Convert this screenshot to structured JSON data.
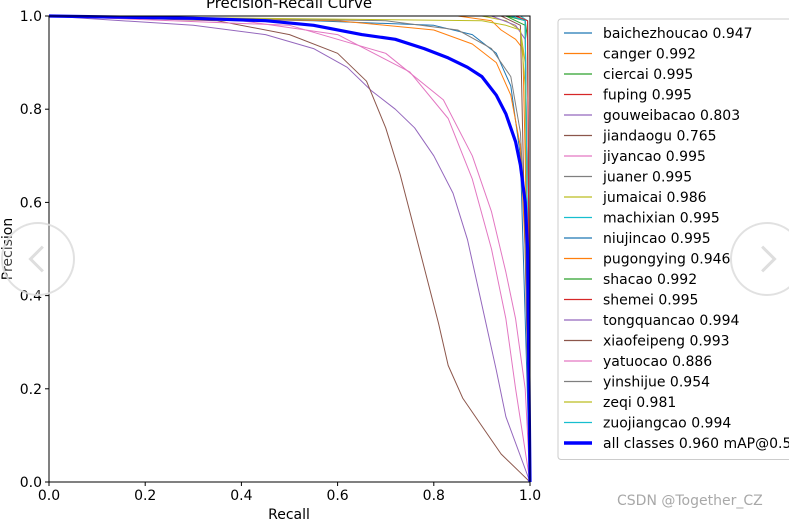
{
  "page": {
    "watermark": "CSDN @Together_CZ"
  },
  "chart_data": {
    "type": "line",
    "title": "Precision-Recall Curve",
    "xlabel": "Recall",
    "ylabel": "Precision",
    "xlim": [
      0,
      1
    ],
    "ylim": [
      0,
      1
    ],
    "xticks": [
      0.0,
      0.2,
      0.4,
      0.6,
      0.8,
      1.0
    ],
    "yticks": [
      0.0,
      0.2,
      0.4,
      0.6,
      0.8,
      1.0
    ],
    "tick_labels_x": [
      "0.0",
      "0.2",
      "0.4",
      "0.6",
      "0.8",
      "1.0"
    ],
    "tick_labels_y": [
      "0.0",
      "0.2",
      "0.4",
      "0.6",
      "0.8",
      "1.0"
    ],
    "grid": false,
    "legend_position": "outside-right",
    "series": [
      {
        "name": "baichezhoucao 0.947",
        "color": "#1f77b4",
        "x": [
          0,
          0.55,
          0.8,
          0.88,
          0.93,
          0.96,
          0.98,
          1.0
        ],
        "y": [
          1,
          0.99,
          0.98,
          0.96,
          0.92,
          0.85,
          0.7,
          0.0
        ]
      },
      {
        "name": "canger 0.992",
        "color": "#ff7f0e",
        "x": [
          0,
          0.85,
          0.92,
          0.94,
          0.97,
          0.985,
          0.99,
          1.0
        ],
        "y": [
          1,
          1,
          0.99,
          0.97,
          0.95,
          0.93,
          0.7,
          0.0
        ]
      },
      {
        "name": "ciercai 0.995",
        "color": "#2ca02c",
        "x": [
          0,
          0.95,
          0.99,
          0.995,
          1.0
        ],
        "y": [
          1,
          1,
          0.99,
          0.95,
          0.0
        ]
      },
      {
        "name": "fuping 0.995",
        "color": "#d62728",
        "x": [
          0,
          0.97,
          0.995,
          1.0
        ],
        "y": [
          1,
          1,
          0.99,
          0.0
        ]
      },
      {
        "name": "gouweibacao 0.803",
        "color": "#9467bd",
        "x": [
          0,
          0.3,
          0.45,
          0.55,
          0.62,
          0.67,
          0.72,
          0.76,
          0.8,
          0.84,
          0.87,
          0.9,
          0.93,
          0.95,
          1.0
        ],
        "y": [
          1,
          0.98,
          0.96,
          0.93,
          0.89,
          0.84,
          0.8,
          0.76,
          0.7,
          0.62,
          0.52,
          0.38,
          0.24,
          0.14,
          0.0
        ]
      },
      {
        "name": "jiandaogu 0.765",
        "color": "#8c564b",
        "x": [
          0,
          0.35,
          0.5,
          0.6,
          0.66,
          0.7,
          0.73,
          0.75,
          0.77,
          0.79,
          0.81,
          0.83,
          0.86,
          0.9,
          0.94,
          0.98,
          1.0
        ],
        "y": [
          1,
          0.99,
          0.96,
          0.92,
          0.86,
          0.76,
          0.66,
          0.58,
          0.5,
          0.42,
          0.34,
          0.25,
          0.18,
          0.12,
          0.06,
          0.02,
          0.0
        ]
      },
      {
        "name": "jiyancao 0.995",
        "color": "#e377c2",
        "x": [
          0,
          0.5,
          0.7,
          0.82,
          0.88,
          0.92,
          0.95,
          0.97,
          0.99,
          1.0
        ],
        "y": [
          1,
          0.98,
          0.92,
          0.82,
          0.7,
          0.58,
          0.45,
          0.35,
          0.2,
          0.0
        ]
      },
      {
        "name": "juaner 0.995",
        "color": "#7f7f7f",
        "x": [
          0,
          0.96,
          0.99,
          1.0
        ],
        "y": [
          1,
          1,
          0.99,
          0.0
        ]
      },
      {
        "name": "jumaicai 0.986",
        "color": "#bcbd22",
        "x": [
          0,
          0.9,
          0.95,
          0.98,
          0.99,
          1.0
        ],
        "y": [
          1,
          1,
          0.99,
          0.97,
          0.9,
          0.0
        ]
      },
      {
        "name": "machixian 0.995",
        "color": "#17becf",
        "x": [
          0,
          0.98,
          0.995,
          1.0
        ],
        "y": [
          1,
          1,
          0.99,
          0.0
        ]
      },
      {
        "name": "niujincao 0.995",
        "color": "#1f77b4",
        "x": [
          0,
          0.96,
          0.99,
          1.0
        ],
        "y": [
          1,
          1,
          0.99,
          0.0
        ]
      },
      {
        "name": "pugongying 0.946",
        "color": "#ff7f0e",
        "x": [
          0,
          0.6,
          0.8,
          0.88,
          0.93,
          0.96,
          0.98,
          0.99,
          1.0
        ],
        "y": [
          1,
          0.99,
          0.97,
          0.94,
          0.9,
          0.83,
          0.72,
          0.5,
          0.0
        ]
      },
      {
        "name": "shacao 0.992",
        "color": "#2ca02c",
        "x": [
          0,
          0.95,
          0.99,
          1.0
        ],
        "y": [
          1,
          1,
          0.98,
          0.0
        ]
      },
      {
        "name": "shemei 0.995",
        "color": "#d62728",
        "x": [
          0,
          0.97,
          0.995,
          1.0
        ],
        "y": [
          1,
          1,
          0.99,
          0.0
        ]
      },
      {
        "name": "tongquancao 0.994",
        "color": "#9467bd",
        "x": [
          0,
          0.92,
          0.97,
          0.99,
          1.0
        ],
        "y": [
          1,
          1,
          0.98,
          0.95,
          0.0
        ]
      },
      {
        "name": "xiaofeipeng 0.993",
        "color": "#8c564b",
        "x": [
          0,
          0.94,
          0.98,
          1.0
        ],
        "y": [
          1,
          1,
          0.98,
          0.0
        ]
      },
      {
        "name": "yatuocao 0.886",
        "color": "#e377c2",
        "x": [
          0,
          0.4,
          0.6,
          0.75,
          0.83,
          0.88,
          0.92,
          0.95,
          0.97,
          1.0
        ],
        "y": [
          1,
          0.99,
          0.96,
          0.88,
          0.78,
          0.65,
          0.5,
          0.35,
          0.2,
          0.0
        ]
      },
      {
        "name": "yinshijue 0.954",
        "color": "#7f7f7f",
        "x": [
          0,
          0.7,
          0.85,
          0.92,
          0.96,
          0.98,
          0.99,
          1.0
        ],
        "y": [
          1,
          0.99,
          0.97,
          0.93,
          0.87,
          0.75,
          0.55,
          0.0
        ]
      },
      {
        "name": "zeqi 0.981",
        "color": "#bcbd22",
        "x": [
          0,
          0.9,
          0.95,
          0.98,
          0.99,
          1.0
        ],
        "y": [
          1,
          0.99,
          0.98,
          0.97,
          0.85,
          0.0
        ]
      },
      {
        "name": "zuojiangcao 0.994",
        "color": "#17becf",
        "x": [
          0,
          0.96,
          0.99,
          1.0
        ],
        "y": [
          1,
          1,
          0.99,
          0.0
        ]
      },
      {
        "name": "all classes 0.960 mAP@0.5",
        "color": "#0000ff",
        "bold": true,
        "x": [
          0,
          0.3,
          0.45,
          0.55,
          0.65,
          0.72,
          0.78,
          0.83,
          0.87,
          0.9,
          0.93,
          0.95,
          0.97,
          0.98,
          0.99,
          0.995,
          1.0
        ],
        "y": [
          1,
          0.995,
          0.99,
          0.98,
          0.96,
          0.95,
          0.93,
          0.91,
          0.89,
          0.87,
          0.83,
          0.79,
          0.73,
          0.68,
          0.6,
          0.5,
          0.0
        ]
      }
    ]
  }
}
